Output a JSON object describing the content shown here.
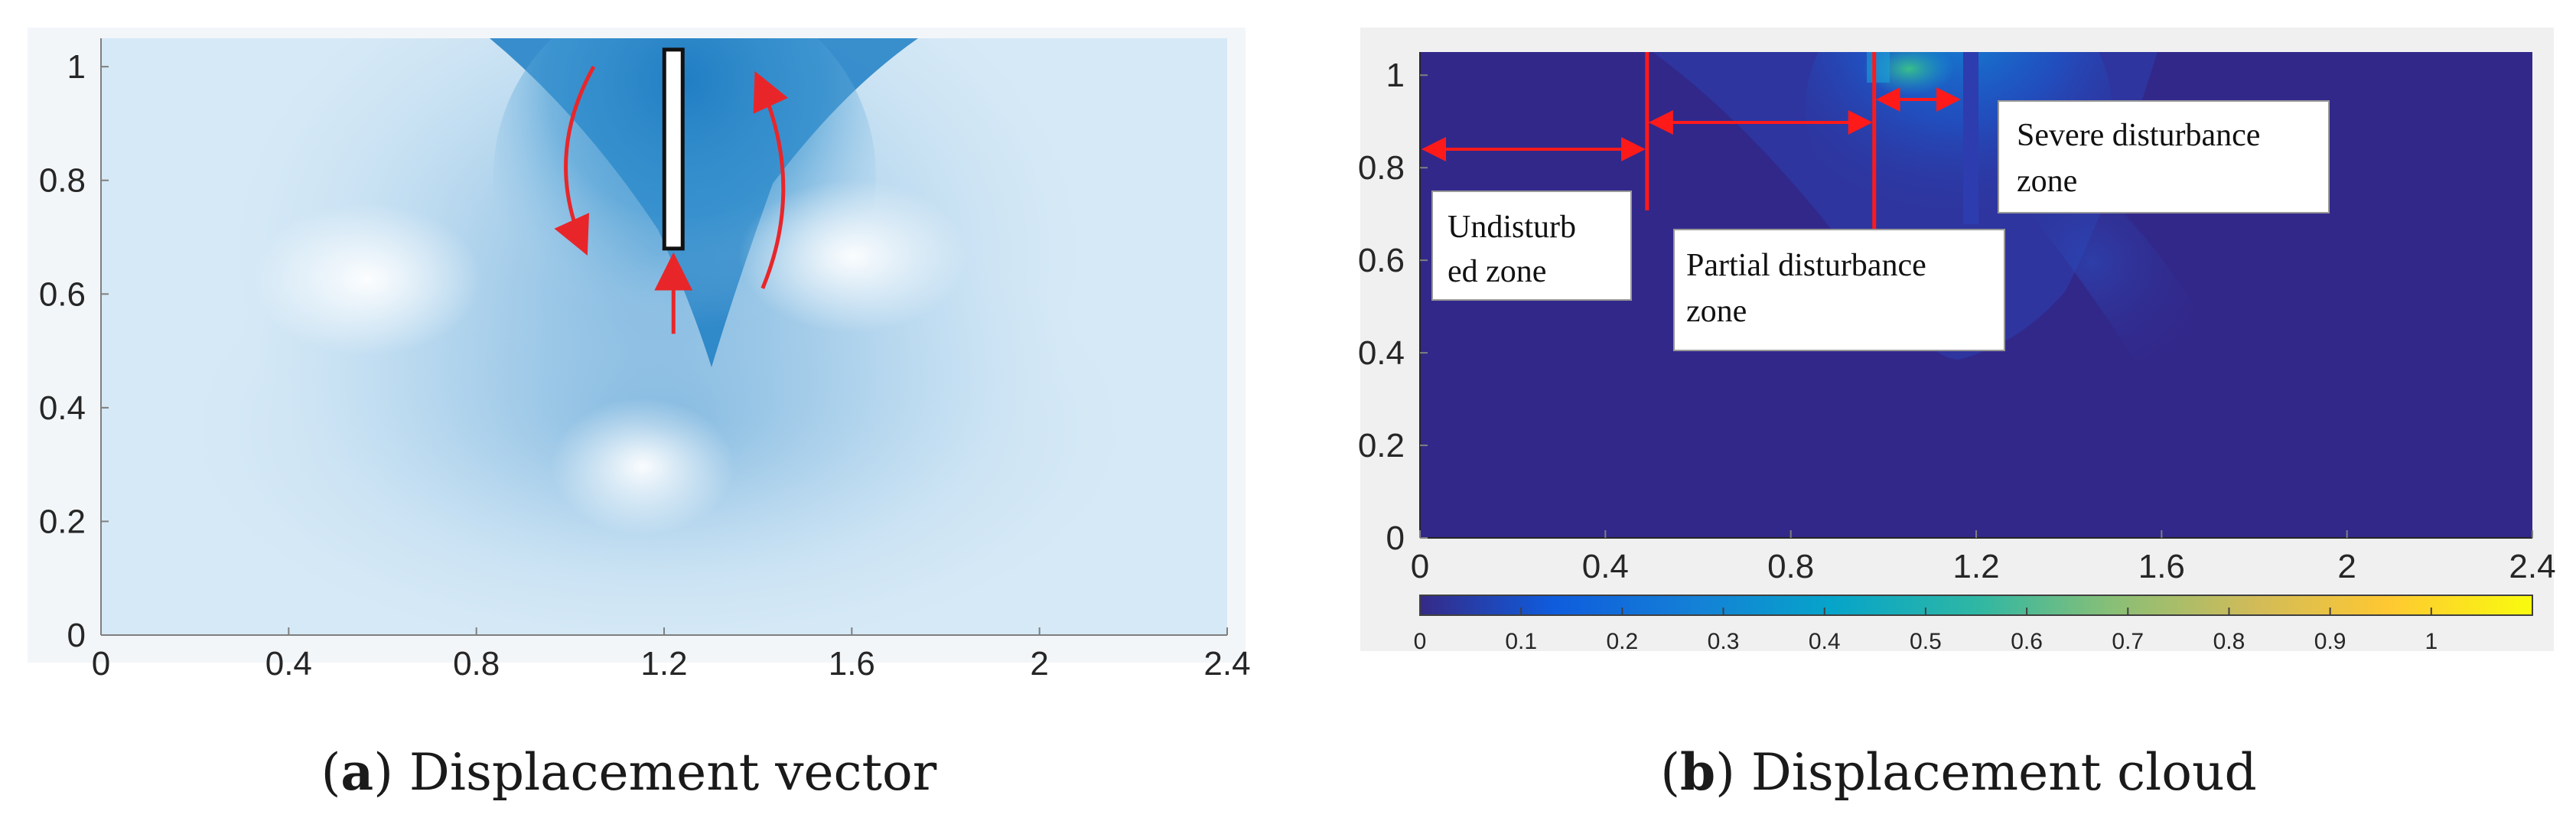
{
  "chart_data": [
    {
      "type": "heatmap",
      "panel_label": "a",
      "caption": "Displacement vector",
      "x_ticks": [
        "0",
        "0.4",
        "0.8",
        "1.2",
        "1.6",
        "2",
        "2.4"
      ],
      "y_ticks": [
        "0",
        "0.2",
        "0.4",
        "0.6",
        "0.8",
        "1"
      ],
      "xlim": [
        0,
        2.4
      ],
      "ylim": [
        0,
        1.05
      ],
      "pile": {
        "x": 1.22,
        "y_bottom": 0.68,
        "y_top": 1.03
      },
      "disturbed_region": {
        "x_min": 0.6,
        "x_max": 1.8,
        "y_min": 0.42,
        "y_max": 1.05
      },
      "flow_arrows": [
        {
          "from": [
            1.05,
            1.0
          ],
          "to": [
            1.03,
            0.68
          ]
        },
        {
          "from": [
            1.22,
            0.53
          ],
          "to": [
            1.22,
            0.66
          ]
        },
        {
          "from": [
            1.41,
            0.61
          ],
          "to": [
            1.4,
            0.98
          ]
        }
      ],
      "colors": {
        "field": "#1f7fc4",
        "arrow": "#e8262a"
      }
    },
    {
      "type": "heatmap",
      "panel_label": "b",
      "caption": "Displacement cloud",
      "x_ticks": [
        "0",
        "0.4",
        "0.8",
        "1.2",
        "1.6",
        "2",
        "2.4"
      ],
      "y_ticks": [
        "0",
        "0.2",
        "0.4",
        "0.6",
        "0.8",
        "1"
      ],
      "xlim": [
        0,
        2.4
      ],
      "ylim": [
        0,
        1.05
      ],
      "zones": [
        {
          "name": "Undisturbed zone",
          "label_lines": [
            "Undisturb",
            "ed zone"
          ],
          "x_from": 0,
          "x_to": 0.49
        },
        {
          "name": "Partial disturbance zone",
          "label_lines": [
            "Partial disturbance",
            "zone"
          ],
          "x_from": 0.49,
          "x_to": 0.98
        },
        {
          "name": "Severe disturbance zone",
          "label_lines": [
            "Severe disturbance",
            "zone"
          ],
          "x_from": 0.98,
          "x_to": 1.17
        }
      ],
      "boundary_lines": [
        0.49,
        0.98
      ],
      "colorbar": {
        "ticks": [
          "0",
          "0.1",
          "0.2",
          "0.3",
          "0.4",
          "0.5",
          "0.6",
          "0.7",
          "0.8",
          "0.9",
          "1"
        ],
        "range": [
          0,
          1.1
        ],
        "colors": [
          "#352a87",
          "#0f5cdd",
          "#1481d6",
          "#06a4ca",
          "#2eb7a4",
          "#87bf77",
          "#d1bb59",
          "#fec832",
          "#f9fb0e"
        ]
      },
      "colors": {
        "background": "#32288a",
        "marker": "#ff1a1a"
      }
    }
  ]
}
